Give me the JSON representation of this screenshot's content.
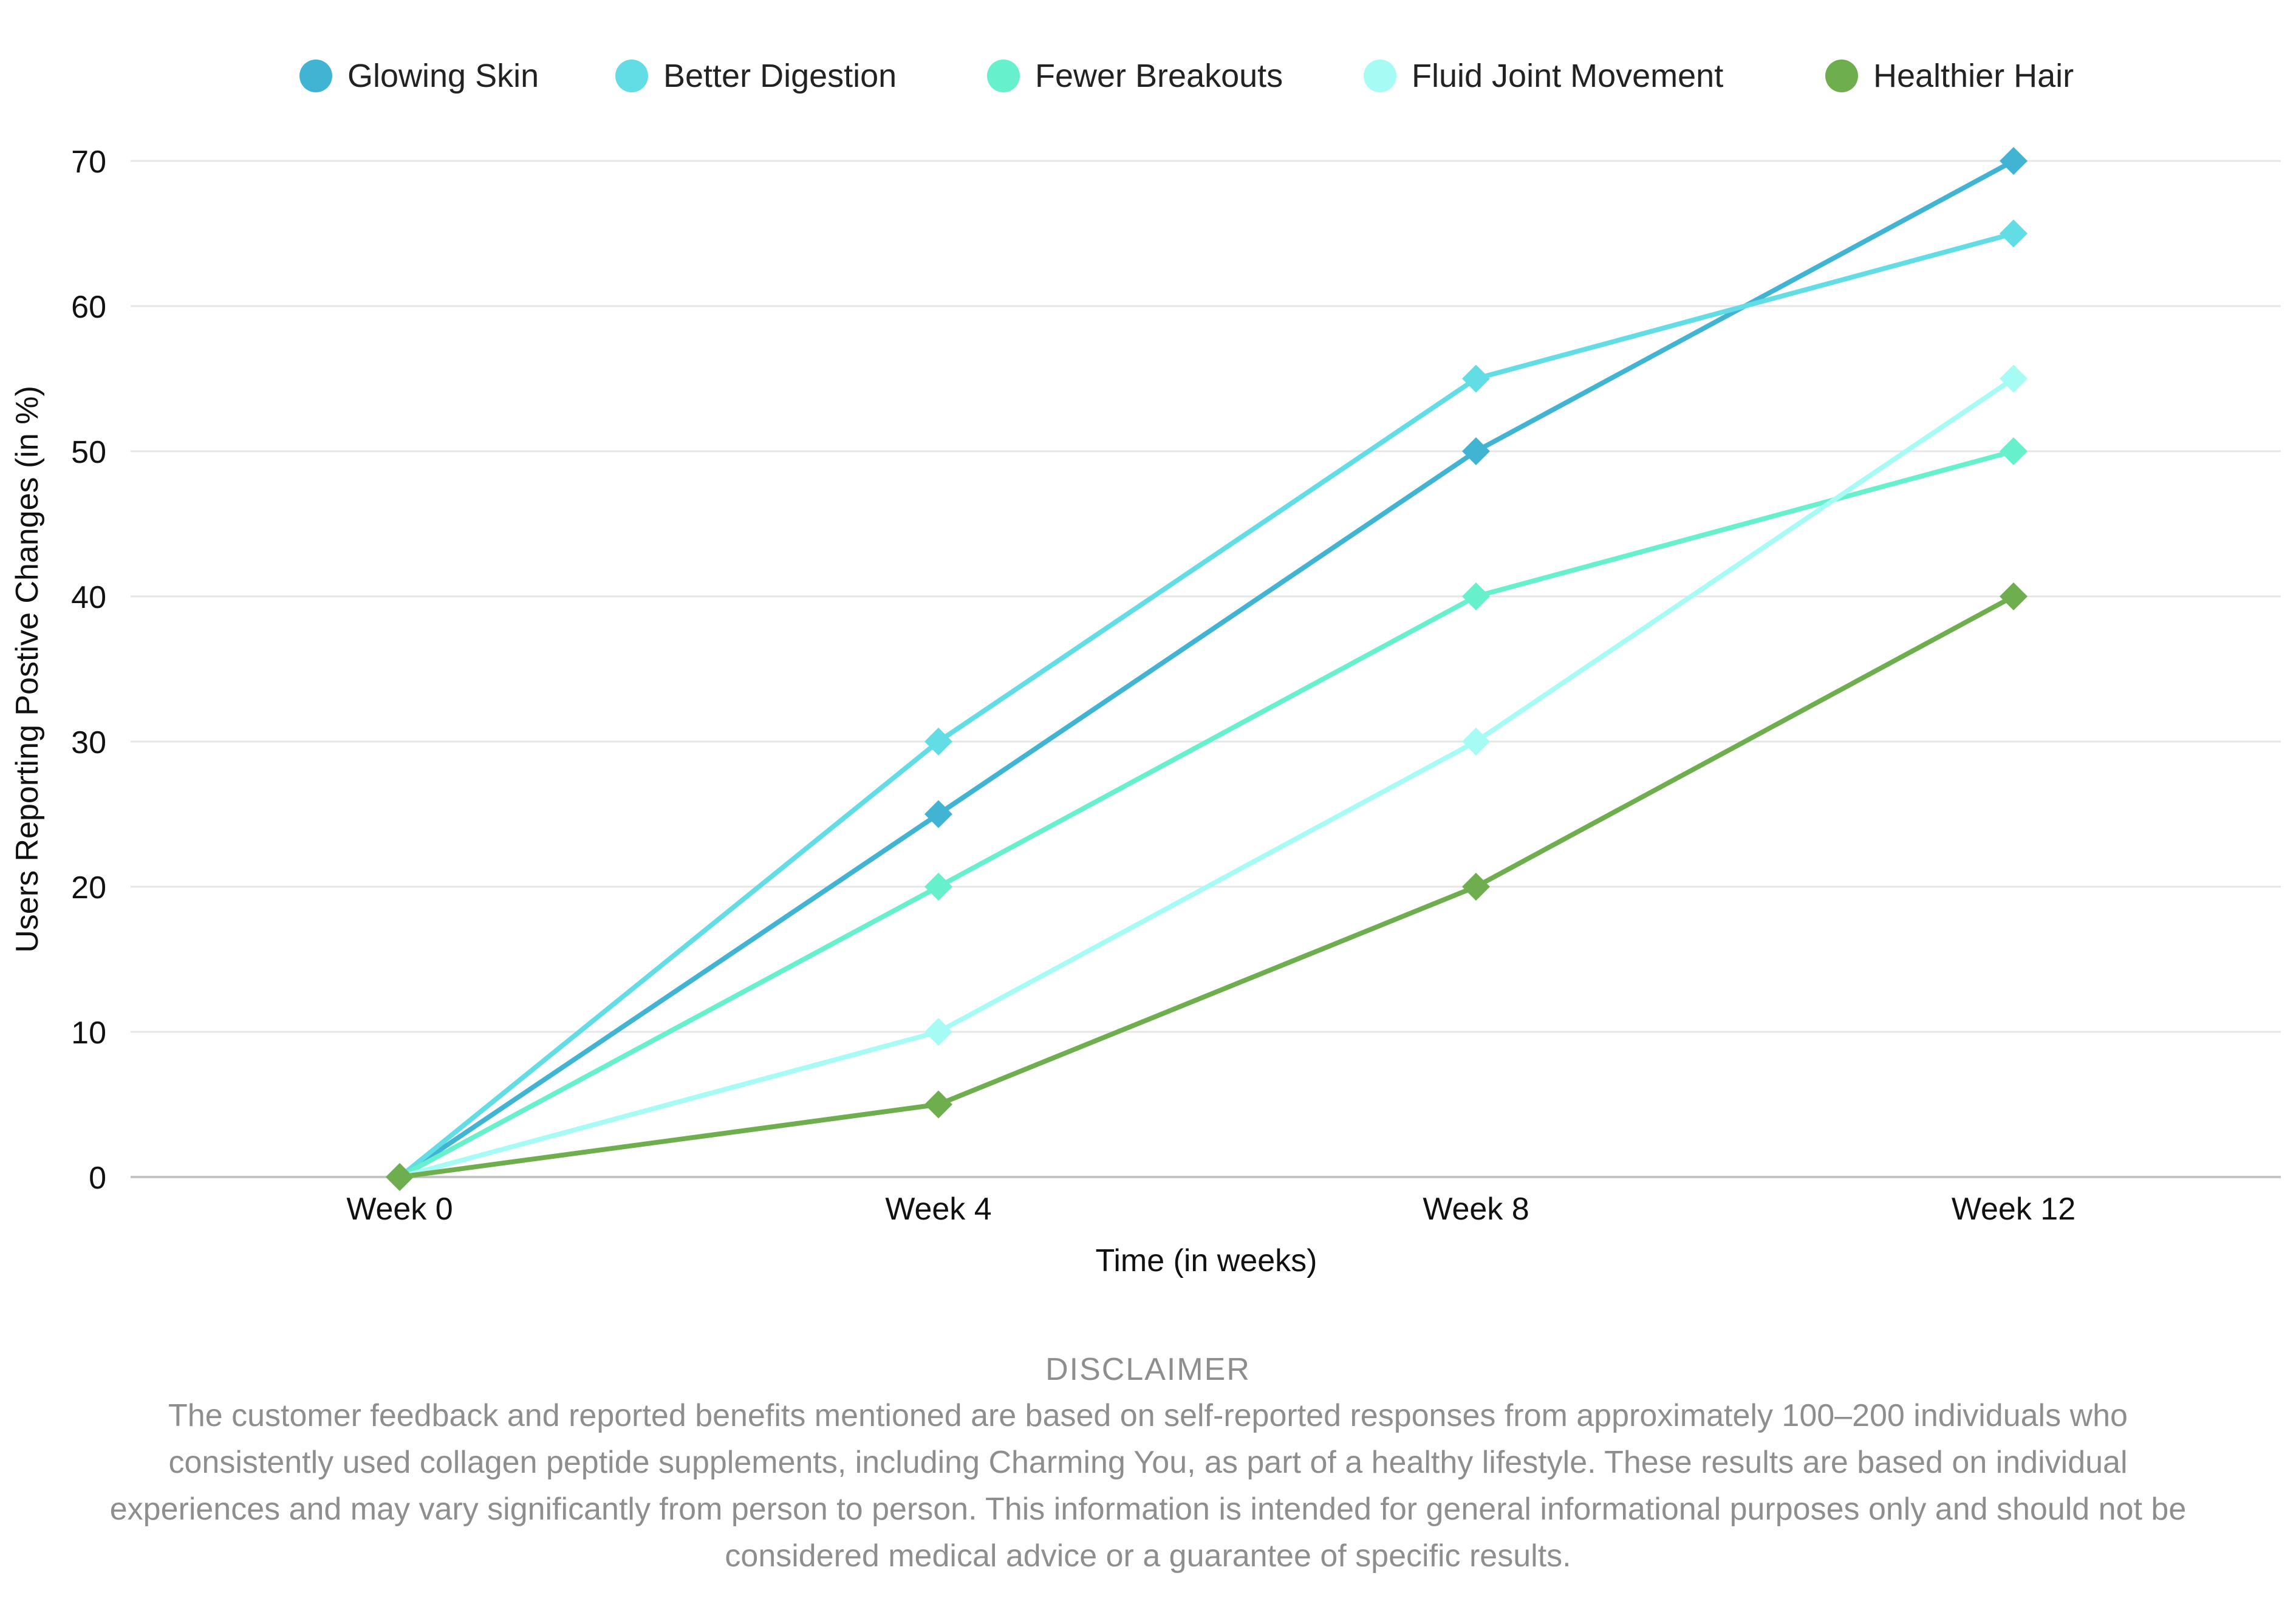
{
  "chart_data": {
    "type": "line",
    "categories": [
      "Week 0",
      "Week 4",
      "Week 8",
      "Week 12"
    ],
    "xlabel": "Time (in weeks)",
    "ylabel": "Users Reporting Postive Changes (in %)",
    "ylim": [
      0,
      70
    ],
    "yticks": [
      0,
      10,
      20,
      30,
      40,
      50,
      60,
      70
    ],
    "grid": true,
    "legend": "top",
    "marker": "diamond",
    "series": [
      {
        "name": "Glowing Skin",
        "color": "#41B4D3",
        "values": [
          0,
          25,
          50,
          70
        ]
      },
      {
        "name": "Better Digestion",
        "color": "#62DDE6",
        "values": [
          0,
          30,
          55,
          65
        ]
      },
      {
        "name": "Fewer Breakouts",
        "color": "#66F0CB",
        "values": [
          0,
          20,
          40,
          50
        ]
      },
      {
        "name": "Fluid Joint Movement",
        "color": "#A6FCF4",
        "values": [
          0,
          10,
          30,
          55
        ]
      },
      {
        "name": "Healthier Hair",
        "color": "#6FAE4E",
        "values": [
          0,
          5,
          20,
          40
        ]
      }
    ]
  },
  "disclaimer": {
    "title": "DISCLAIMER",
    "text": "The customer feedback and reported benefits mentioned are based on self-reported responses from approximately 100–200 individuals who consistently used collagen peptide supplements, including Charming You, as part of a healthy lifestyle. These results are based on individual experiences and may vary significantly from person to person. This information is intended for general informational purposes only and should not be considered medical advice or a guarantee of specific results."
  }
}
